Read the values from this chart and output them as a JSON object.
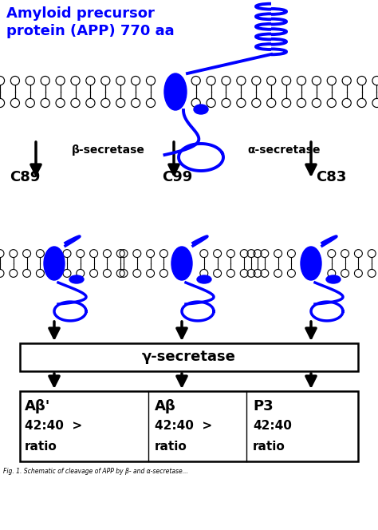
{
  "title_line1": "Amyloid precursor",
  "title_line2": "protein (APP) 770 aa",
  "title_color": "#0000FF",
  "background_color": "#FFFFFF",
  "blue_color": "#0000FF",
  "black_color": "#000000",
  "beta_secretase_label": "β-secretase",
  "alpha_secretase_label": "α-secretase",
  "gamma_secretase_label": "γ-secretase",
  "c89_label": "C89",
  "c99_label": "C99",
  "c83_label": "C83",
  "abeta_prime_label": "Aβ'",
  "abeta_label": "Aβ",
  "p3_label": "P3",
  "ratio1": "42:40  >",
  "ratio2": "42:40  >",
  "ratio3": "42:40",
  "ratio_word": "ratio",
  "caption": "Fig. 1. Schematic of cleavage of APP by β- and α-secretase..."
}
